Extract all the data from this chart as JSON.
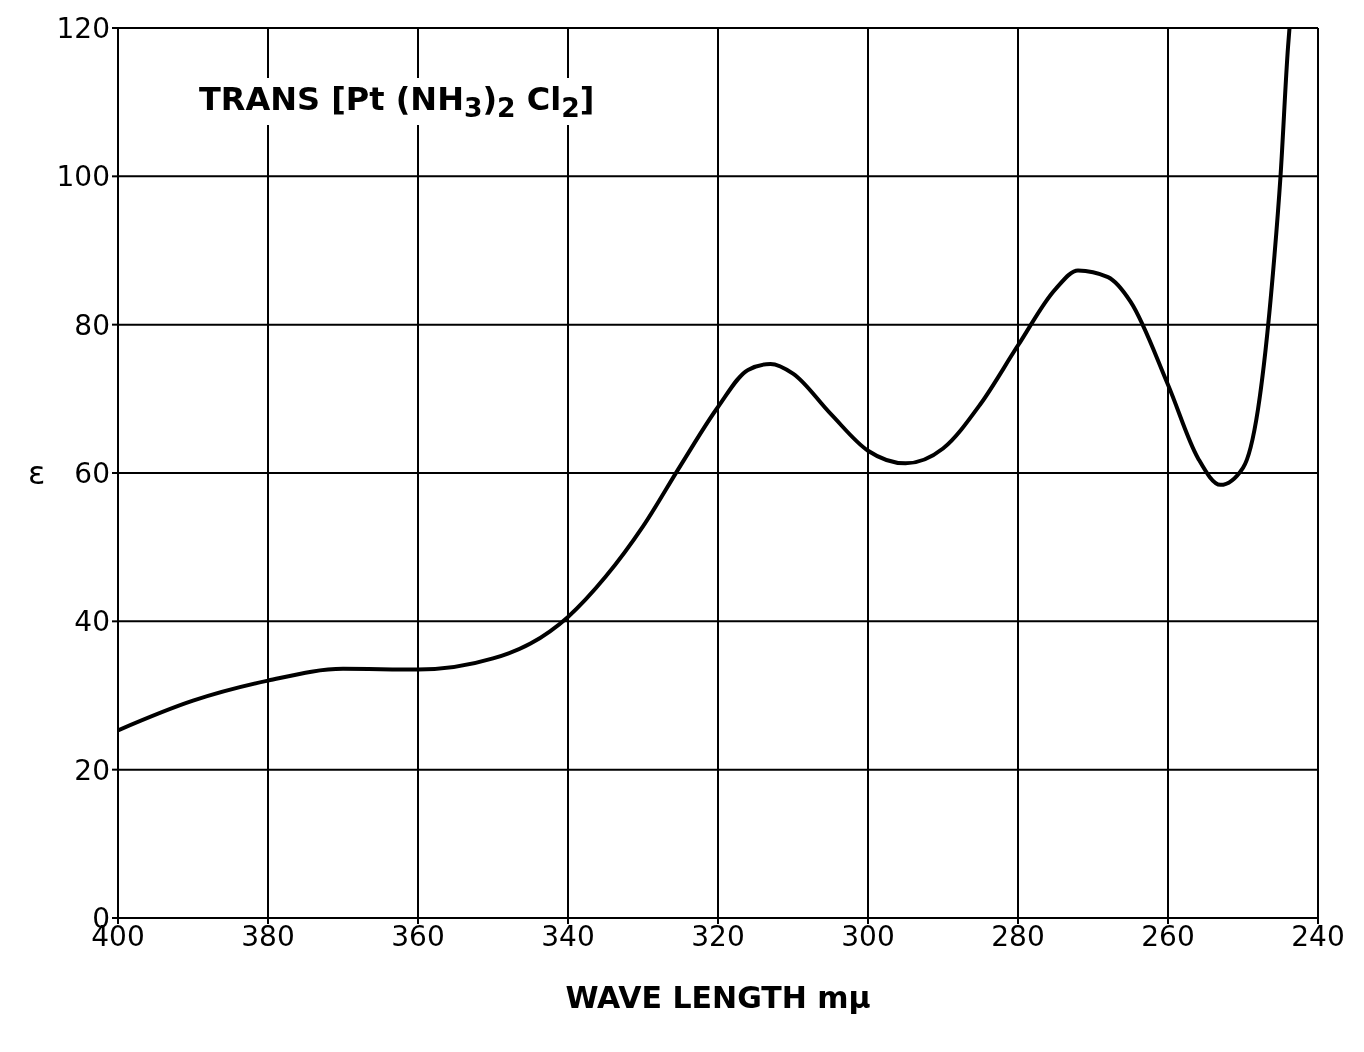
{
  "chart_data": {
    "type": "line",
    "annotations": [
      "TRANS [Pt (NH$_{3}$)$_{2}$ Cl$_{2}$]"
    ],
    "xlabel": "WAVE LENGTH mμ",
    "ylabel": "ε",
    "x": [
      400,
      390,
      380,
      370,
      360,
      350,
      345,
      340,
      335,
      330,
      325,
      320,
      316,
      313,
      310,
      305,
      300,
      295,
      290,
      285,
      280,
      275,
      272,
      268,
      265,
      260,
      256,
      253,
      250,
      248,
      246,
      245,
      244,
      243.8
    ],
    "series": [
      {
        "color": "#000000",
        "values": [
          25.3,
          29.3,
          32,
          33.6,
          33.5,
          35,
          37,
          40.6,
          46,
          52.8,
          61,
          68.9,
          73.9,
          74.7,
          73.4,
          68,
          63,
          61.3,
          63.3,
          69.3,
          77.2,
          84.8,
          87.3,
          86.4,
          83.1,
          71.9,
          62,
          58.4,
          60.7,
          68.6,
          87,
          100,
          117.4,
          120
        ]
      }
    ],
    "xlim": [
      400,
      240
    ],
    "xticks": [
      400,
      380,
      360,
      340,
      320,
      300,
      280,
      260,
      240
    ],
    "ylim": [
      0,
      120
    ],
    "yticks": [
      0,
      20,
      40,
      60,
      80,
      100,
      120
    ],
    "grid": true,
    "legend": false,
    "marker": "none",
    "line_style": "solid"
  }
}
